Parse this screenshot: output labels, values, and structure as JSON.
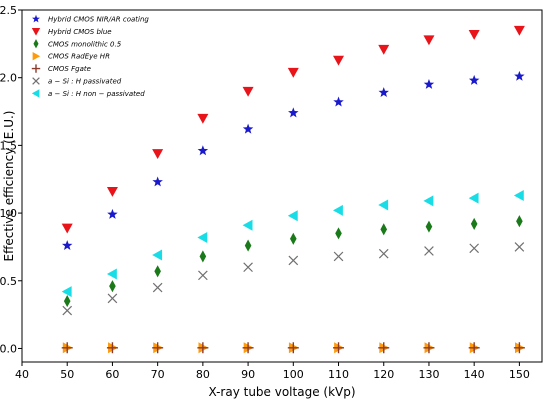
{
  "chart_data": {
    "type": "scatter",
    "xlabel": "X-ray tube voltage (kVp)",
    "ylabel": "Effective efficiency (E.U.)",
    "xlim": [
      40,
      155
    ],
    "ylim": [
      -0.1,
      2.5
    ],
    "x_ticks": [
      40,
      50,
      60,
      70,
      80,
      90,
      100,
      110,
      120,
      130,
      140,
      150
    ],
    "y_ticks": [
      0.0,
      0.5,
      1.0,
      1.5,
      2.0,
      2.5
    ],
    "x_tick_labels": [
      "40",
      "50",
      "60",
      "70",
      "80",
      "90",
      "100",
      "110",
      "120",
      "130",
      "140",
      "150"
    ],
    "y_tick_labels": [
      "0.0",
      "0.5",
      "1.0",
      "1.5",
      "2.0",
      "2.5"
    ],
    "grid": false,
    "legend_position": "top-left",
    "x": [
      50,
      60,
      70,
      80,
      90,
      100,
      110,
      120,
      130,
      140,
      150
    ],
    "series": [
      {
        "name": "Hybrid CMOS NIR/AR coating",
        "marker": "star",
        "color": "#1a1acc",
        "values": [
          0.76,
          0.99,
          1.23,
          1.46,
          1.62,
          1.74,
          1.82,
          1.89,
          1.95,
          1.98,
          2.01
        ]
      },
      {
        "name": "Hybrid CMOS blue",
        "marker": "triangle-down",
        "color": "#e8141a",
        "values": [
          0.89,
          1.16,
          1.44,
          1.7,
          1.9,
          2.04,
          2.13,
          2.21,
          2.28,
          2.32,
          2.35
        ]
      },
      {
        "name": "CMOS monolithic 0.5",
        "marker": "thin-diamond",
        "color": "#1a7a1a",
        "values": [
          0.35,
          0.46,
          0.57,
          0.68,
          0.76,
          0.81,
          0.85,
          0.88,
          0.9,
          0.92,
          0.94
        ]
      },
      {
        "name": "CMOS RadEye HR",
        "marker": "triangle-right",
        "color": "#ff9a0a",
        "values": [
          0.005,
          0.005,
          0.005,
          0.005,
          0.005,
          0.005,
          0.005,
          0.005,
          0.005,
          0.005,
          0.005
        ]
      },
      {
        "name": "CMOS Fgate",
        "marker": "plus",
        "color": "#8c3a2a",
        "values": [
          0.005,
          0.005,
          0.005,
          0.005,
          0.005,
          0.005,
          0.005,
          0.005,
          0.005,
          0.005,
          0.005
        ]
      },
      {
        "name": "a − Si : H passivated",
        "marker": "x",
        "color": "#707070",
        "values": [
          0.28,
          0.37,
          0.45,
          0.54,
          0.6,
          0.65,
          0.68,
          0.7,
          0.72,
          0.74,
          0.75
        ]
      },
      {
        "name": "a − Si : H non − passivated",
        "marker": "triangle-left",
        "color": "#19dde6",
        "values": [
          0.42,
          0.55,
          0.69,
          0.82,
          0.91,
          0.98,
          1.02,
          1.06,
          1.09,
          1.11,
          1.13
        ]
      }
    ]
  }
}
